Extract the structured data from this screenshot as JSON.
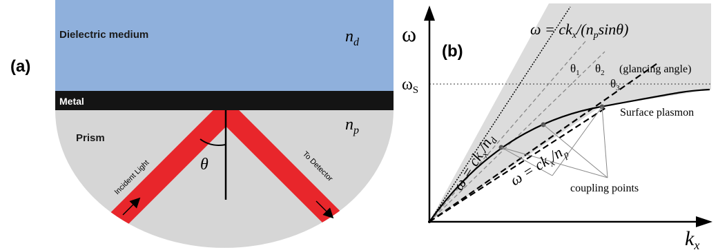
{
  "panel_a": {
    "label": "(a)",
    "dielectric_label": "Dielectric medium",
    "nd_label": "n",
    "nd_sub": "d",
    "metal_label": "Metal",
    "np_label": "n",
    "np_sub": "p",
    "prism_label": "Prism",
    "theta_label": "θ",
    "incident_label": "Incident Light",
    "detector_label": "To Detector",
    "colors": {
      "dielectric": "#8fb0dc",
      "metal": "#141414",
      "prism": "#d6d6d6",
      "beam": "#e8262b"
    }
  },
  "panel_b": {
    "label": "(b)",
    "y_axis_label": "ω",
    "x_axis_label": "k",
    "x_axis_sub": "x",
    "omega_s_label": "ω",
    "omega_s_sub": "S",
    "top_formula": "ω = ck",
    "top_formula_sub": "x",
    "top_formula_rest": "/(n",
    "top_formula_sub2": "p",
    "top_formula_end": "sinθ)",
    "light_line_d": "ω = ck",
    "light_line_d_sub": "x",
    "light_line_d_rest": "/n",
    "light_line_d_sub2": "d",
    "light_line_p": "ω = ck",
    "light_line_p_sub": "x",
    "light_line_p_rest": "/n",
    "light_line_p_sub2": "p",
    "theta1": "θ",
    "theta1_sub": "1",
    "theta2": "θ",
    "theta2_sub": "2",
    "theta3": "θ",
    "theta3_sub": "3",
    "glancing_label": "(glancing angle)",
    "surface_plasmon_label": "Surface plasmon",
    "coupling_label": "coupling points"
  }
}
